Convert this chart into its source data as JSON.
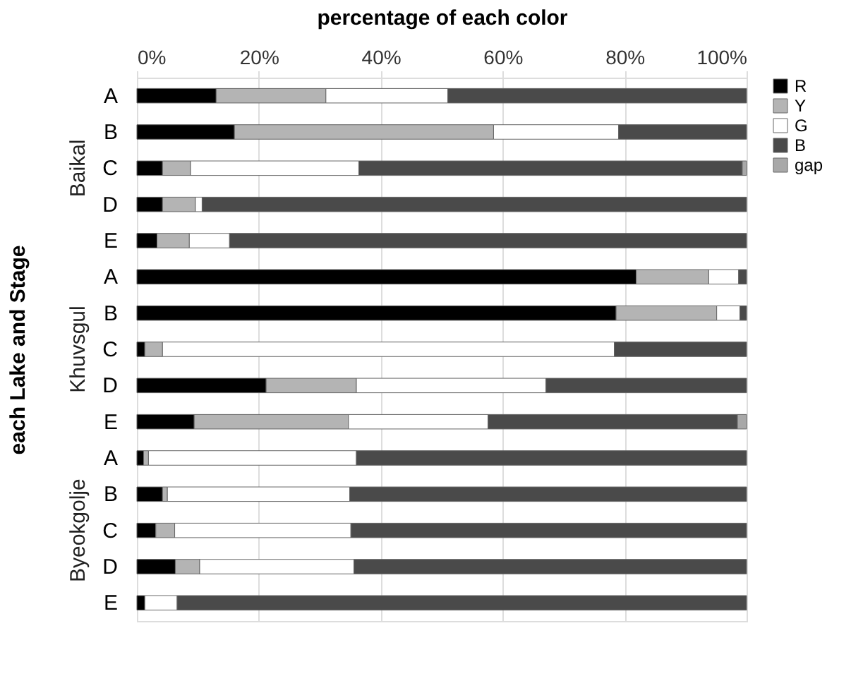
{
  "chart_data": {
    "type": "bar",
    "orientation": "horizontal",
    "stacked": true,
    "xlabel": "percentage of each color",
    "ylabel": "each Lake and Stage",
    "categories": [
      "A",
      "B",
      "C",
      "D",
      "E",
      "A",
      "B",
      "C",
      "D",
      "E",
      "A",
      "B",
      "C",
      "D",
      "E"
    ],
    "annotations": [
      "Baikal",
      "Khuvsgul",
      "Byeokgolje"
    ],
    "series": [
      {
        "name": "R",
        "color": "#000000",
        "values": [
          13,
          16,
          4.2,
          4.2,
          3.3,
          81.9,
          78.6,
          1.3,
          21.2,
          9.4,
          1.1,
          4.2,
          3.1,
          6.3,
          1.3
        ]
      },
      {
        "name": "Y",
        "color": "#b4b4b4",
        "values": [
          18,
          42.5,
          4.6,
          5.4,
          5.3,
          11.9,
          16.5,
          2.9,
          14.8,
          25.3,
          0.8,
          0.8,
          3.1,
          4.0,
          null
        ]
      },
      {
        "name": "G",
        "color": "#ffffff",
        "values": [
          20,
          20.5,
          27.6,
          1.1,
          6.6,
          4.9,
          3.8,
          74.1,
          31.1,
          22.9,
          34.1,
          29.9,
          28.9,
          25.3,
          5.3
        ]
      },
      {
        "name": "B",
        "color": "#4a4a4a",
        "values": [
          49,
          21,
          62.9,
          89.3,
          84.8,
          1.3,
          1.1,
          21.7,
          32.9,
          40.9,
          64,
          65.1,
          64.9,
          64.4,
          93.4
        ]
      },
      {
        "name": "gap",
        "color": "#a8a8a8",
        "values": [
          null,
          null,
          0.7,
          null,
          null,
          null,
          null,
          null,
          null,
          1.5,
          null,
          null,
          null,
          null,
          null
        ]
      }
    ],
    "xlim": [
      0,
      100
    ],
    "xticks": [
      {
        "value": 0,
        "label": "0%"
      },
      {
        "value": 20,
        "label": "20%"
      },
      {
        "value": 40,
        "label": "40%"
      },
      {
        "value": 60,
        "label": "60%"
      },
      {
        "value": 80,
        "label": "80%"
      },
      {
        "value": 100,
        "label": "100%"
      }
    ],
    "grid": "x",
    "legend": "right"
  }
}
